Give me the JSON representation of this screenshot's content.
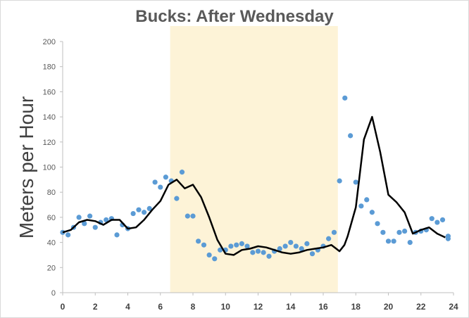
{
  "chart_data": {
    "type": "scatter",
    "title": "Bucks: After Wednesday",
    "xlabel": "",
    "ylabel": "Meters per Hour",
    "xlim": [
      0,
      24
    ],
    "ylim": [
      0,
      200
    ],
    "x_ticks": [
      "0",
      "2",
      "4",
      "6",
      "8",
      "10",
      "12",
      "14",
      "16",
      "18",
      "20",
      "22",
      "24"
    ],
    "y_ticks": [
      "0",
      "20",
      "40",
      "60",
      "80",
      "100",
      "120",
      "140",
      "160",
      "180",
      "200"
    ],
    "grid": false,
    "legend": "none",
    "highlight_band": {
      "x_start": 6.6,
      "x_end": 16.9,
      "color": "#fdf3d7"
    },
    "series": [
      {
        "mark": "scatter",
        "color": "#5b9bd5",
        "x": [
          0,
          0.33,
          0.67,
          1,
          1.33,
          1.67,
          2,
          2.33,
          2.67,
          3,
          3.33,
          3.67,
          4,
          4.33,
          4.67,
          5,
          5.33,
          5.67,
          6,
          6.33,
          6.67,
          7,
          7.33,
          7.67,
          8,
          8.33,
          8.67,
          9,
          9.33,
          9.67,
          10,
          10.33,
          10.67,
          11,
          11.33,
          11.67,
          12,
          12.33,
          12.67,
          13,
          13.33,
          13.67,
          14,
          14.33,
          14.67,
          15,
          15.33,
          15.67,
          16,
          16.33,
          16.67,
          17,
          17.33,
          17.67,
          18,
          18.33,
          18.67,
          19,
          19.33,
          19.67,
          20,
          20.33,
          20.67,
          21,
          21.33,
          21.67,
          22,
          22.33,
          22.67,
          23,
          23.33,
          23.67
        ],
        "y": [
          48,
          46,
          52,
          60,
          55,
          61,
          52,
          56,
          58,
          59,
          46,
          54,
          51,
          63,
          66,
          64,
          67,
          88,
          84,
          92,
          89,
          75,
          96,
          61,
          61,
          41,
          38,
          30,
          27,
          34,
          34,
          37,
          38,
          39,
          37,
          32,
          33,
          32,
          29,
          33,
          35,
          37,
          40,
          37,
          35,
          39,
          31,
          34,
          37,
          43,
          48,
          89,
          155,
          125,
          88,
          69,
          74,
          64,
          55,
          48,
          41,
          41,
          48,
          49,
          40,
          48,
          49,
          50,
          59,
          56,
          58,
          45
        ],
        "y_end": 43
      },
      {
        "mark": "line",
        "color": "#000000",
        "x": [
          0,
          0.5,
          1,
          1.5,
          2,
          2.5,
          3,
          3.5,
          4,
          4.5,
          5,
          5.5,
          6,
          6.5,
          7,
          7.5,
          8,
          8.5,
          9,
          9.5,
          10,
          10.5,
          11,
          11.5,
          12,
          12.5,
          13,
          13.5,
          14,
          14.5,
          15,
          15.5,
          16,
          16.5,
          16.8,
          17,
          17.3,
          17.5,
          18,
          18.5,
          19,
          19.5,
          20,
          20.5,
          21,
          21.5,
          22,
          22.5,
          23,
          23.5
        ],
        "y": [
          48,
          50,
          56,
          58,
          57,
          54,
          58,
          58,
          51,
          52,
          58,
          66,
          73,
          86,
          90,
          83,
          86,
          76,
          60,
          42,
          31,
          30,
          34,
          35,
          37,
          36,
          34,
          32,
          31,
          32,
          34,
          35,
          36,
          38,
          35,
          33,
          38,
          45,
          68,
          122,
          140,
          112,
          78,
          72,
          64,
          47,
          50,
          52,
          47,
          44
        ]
      }
    ]
  }
}
